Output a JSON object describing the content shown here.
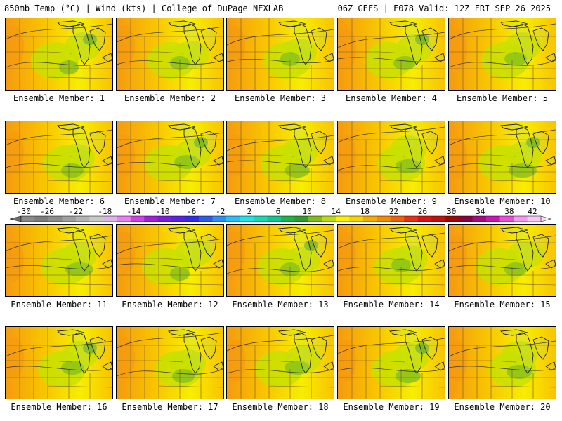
{
  "header": {
    "left_title": "850mb Temp (°C) | Wind (kts) | College of DuPage NEXLAB",
    "right_title": "06Z GEFS | F078 Valid: 12Z FRI SEP 26 2025"
  },
  "members": [
    {
      "label": "Ensemble Member: 1"
    },
    {
      "label": "Ensemble Member: 2"
    },
    {
      "label": "Ensemble Member: 3"
    },
    {
      "label": "Ensemble Member: 4"
    },
    {
      "label": "Ensemble Member: 5"
    },
    {
      "label": "Ensemble Member: 6"
    },
    {
      "label": "Ensemble Member: 7"
    },
    {
      "label": "Ensemble Member: 8"
    },
    {
      "label": "Ensemble Member: 9"
    },
    {
      "label": "Ensemble Member: 10"
    },
    {
      "label": "Ensemble Member: 11"
    },
    {
      "label": "Ensemble Member: 12"
    },
    {
      "label": "Ensemble Member: 13"
    },
    {
      "label": "Ensemble Member: 14"
    },
    {
      "label": "Ensemble Member: 15"
    },
    {
      "label": "Ensemble Member: 16"
    },
    {
      "label": "Ensemble Member: 17"
    },
    {
      "label": "Ensemble Member: 18"
    },
    {
      "label": "Ensemble Member: 19"
    },
    {
      "label": "Ensemble Member: 20"
    }
  ],
  "colorbar": {
    "tick_labels": [
      "-30",
      "-26",
      "-22",
      "-18",
      "-14",
      "-10",
      "-6",
      "-2",
      "2",
      "6",
      "10",
      "14",
      "18",
      "22",
      "26",
      "30",
      "34",
      "38",
      "42"
    ],
    "colors": [
      "#8a8a8a",
      "#7d7d7d",
      "#8c8c8c",
      "#a0a0a0",
      "#b4b4b4",
      "#c8c8c8",
      "#dcb4ec",
      "#e97ff0",
      "#d23fe6",
      "#a51fd6",
      "#7a1ee0",
      "#5a22e6",
      "#2f2fe8",
      "#2b5de8",
      "#2f8ff0",
      "#28c0f5",
      "#1ee3e8",
      "#19d9b4",
      "#16c78c",
      "#1db54a",
      "#2f9d2f",
      "#7fbc1f",
      "#b8dc12",
      "#f6f200",
      "#f8d200",
      "#f7aa00",
      "#f58a00",
      "#f0600a",
      "#e73210",
      "#da1414",
      "#c20f0f",
      "#9f0808",
      "#8a0040",
      "#a80a82",
      "#cc16b2",
      "#e84ed8",
      "#f29aec",
      "#f9c8f6"
    ]
  },
  "panel_fill": {
    "orange": "#f59a10",
    "gold": "#f8c400",
    "yellow": "#f7ee00",
    "lime": "#c8e000",
    "green": "#8cc21a",
    "darkgreen": "#5aa82a"
  }
}
